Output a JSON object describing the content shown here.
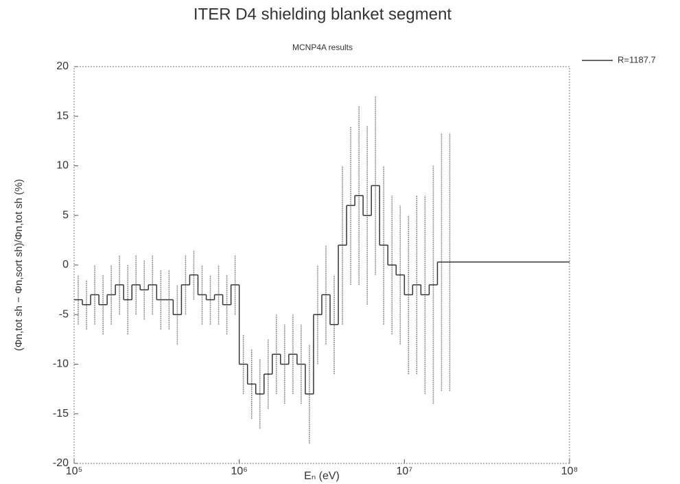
{
  "chart_data": {
    "type": "histogram",
    "title": "ITER D4 shielding blanket segment",
    "subtitle": "MCNP4A results",
    "x_label": "Eₙ (eV)",
    "y_label": "(Φn,tot sh − Φn,sort sh)/Φn,tot sh (%)",
    "xscale": "log",
    "xlim": [
      100000,
      100000000
    ],
    "xticks": [
      {
        "value": 100000,
        "label": "10⁵"
      },
      {
        "value": 1000000,
        "label": "10⁶"
      },
      {
        "value": 10000000,
        "label": "10⁷"
      },
      {
        "value": 100000000,
        "label": "10⁸"
      }
    ],
    "ylim": [
      -20,
      20
    ],
    "yticks": [
      -20,
      -15,
      -10,
      -5,
      0,
      5,
      10,
      15,
      20
    ],
    "grid": false,
    "legend_position": "outside-right",
    "series": [
      {
        "name": "R=1187.7",
        "color": "#333333",
        "error_color": "#8a8a8a",
        "bins": [
          100000,
          112200,
          125900,
          141300,
          158500,
          177800,
          199500,
          223900,
          251200,
          281800,
          316200,
          354800,
          398100,
          446700,
          501200,
          562300,
          631000,
          707900,
          794300,
          891300,
          1000000,
          1122000,
          1259000,
          1413000,
          1585000,
          1778000,
          1995000,
          2239000,
          2512000,
          2818000,
          3162000,
          3548000,
          3981000,
          4467000,
          5012000,
          5623000,
          6310000,
          7079000,
          7943000,
          8913000,
          10000000,
          11220000,
          12590000,
          14130000,
          15850000,
          17780000,
          19950000,
          100000000
        ],
        "values": [
          -3.5,
          -4,
          -3,
          -4,
          -3,
          -2,
          -3.5,
          -2,
          -2.5,
          -2,
          -3.5,
          -3.5,
          -5,
          -2,
          -1,
          -3,
          -3.5,
          -3,
          -4,
          -2,
          -10,
          -12,
          -13,
          -11,
          -9,
          -10,
          -9,
          -10,
          -13,
          -5,
          -3,
          -6,
          2,
          6,
          7,
          5,
          8,
          2,
          0,
          -1,
          -3,
          -2,
          -3,
          -2,
          0.3,
          0.3,
          0.3
        ],
        "errors": [
          2.5,
          2.5,
          3,
          3,
          3,
          3,
          3.5,
          3,
          3,
          3,
          3,
          3,
          3,
          3,
          2.5,
          3,
          2.5,
          3,
          3,
          3,
          3,
          3.5,
          3.5,
          3.5,
          4,
          4,
          4,
          4,
          5,
          5,
          5,
          5,
          8,
          8,
          9,
          9,
          9,
          8,
          7,
          7,
          8,
          9,
          10,
          12,
          13,
          13,
          0
        ]
      }
    ]
  }
}
